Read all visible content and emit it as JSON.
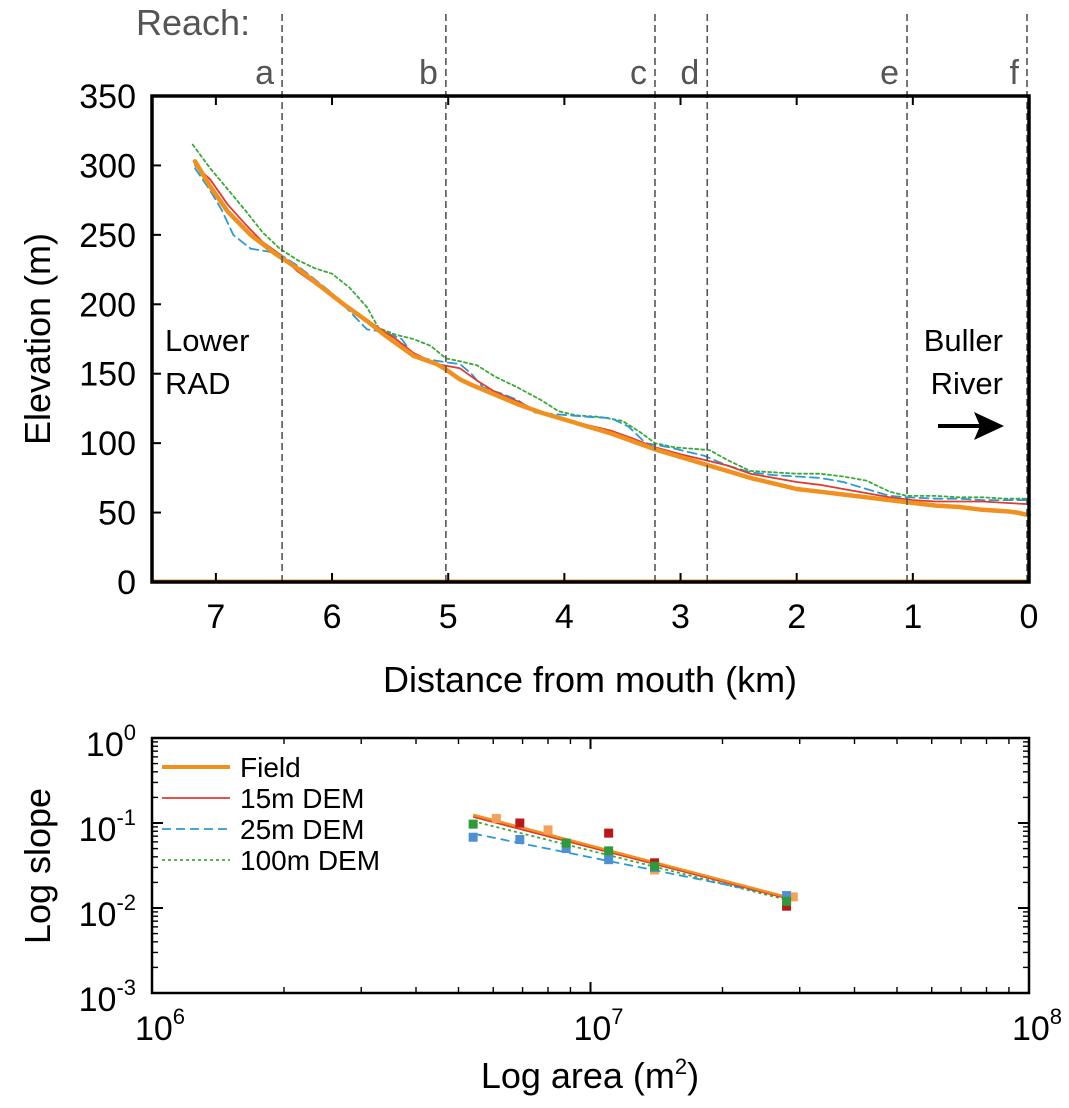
{
  "chart_data": [
    {
      "type": "line",
      "title": "",
      "xlabel": "Distance from mouth (km)",
      "ylabel": "Elevation (m)",
      "xlim": [
        7.55,
        0
      ],
      "ylim": [
        0,
        350
      ],
      "x_reversed": true,
      "xticks": [
        "7",
        "6",
        "5",
        "4",
        "3",
        "2",
        "1",
        "0"
      ],
      "xtick_values": [
        7,
        6,
        5,
        4,
        3,
        2,
        1,
        0
      ],
      "yticks": [
        "0",
        "50",
        "100",
        "150",
        "200",
        "250",
        "300",
        "350"
      ],
      "ytick_values": [
        0,
        50,
        100,
        150,
        200,
        250,
        300,
        350
      ],
      "reach_label": "Reach:",
      "reaches": [
        {
          "label": "a",
          "x": 6.43
        },
        {
          "label": "b",
          "x": 5.02
        },
        {
          "label": "c",
          "x": 3.22
        },
        {
          "label": "d",
          "x": 2.77
        },
        {
          "label": "e",
          "x": 1.05
        },
        {
          "label": "f",
          "x": 0.0
        }
      ],
      "annotations": {
        "left_line1": "Lower",
        "left_line2": "RAD",
        "right_line1": "Buller",
        "right_line2": "River"
      },
      "series": [
        {
          "name": "Field",
          "color": "#f0901e",
          "style": "solid-thick",
          "points": [
            [
              7.18,
              303
            ],
            [
              7.05,
              285
            ],
            [
              6.9,
              267
            ],
            [
              6.7,
              250
            ],
            [
              6.5,
              237
            ],
            [
              6.3,
              226
            ],
            [
              6.1,
              213
            ],
            [
              5.9,
              200
            ],
            [
              5.7,
              188
            ],
            [
              5.55,
              178
            ],
            [
              5.45,
              172
            ],
            [
              5.3,
              163
            ],
            [
              5.1,
              157
            ],
            [
              5.02,
              153
            ],
            [
              4.9,
              146
            ],
            [
              4.8,
              142
            ],
            [
              4.6,
              135
            ],
            [
              4.4,
              128
            ],
            [
              4.2,
              122
            ],
            [
              4.0,
              117
            ],
            [
              3.8,
              112
            ],
            [
              3.6,
              107
            ],
            [
              3.4,
              101
            ],
            [
              3.2,
              95
            ],
            [
              3.0,
              90
            ],
            [
              2.8,
              85
            ],
            [
              2.6,
              80
            ],
            [
              2.4,
              75
            ],
            [
              2.2,
              71
            ],
            [
              2.0,
              67
            ],
            [
              1.8,
              65
            ],
            [
              1.6,
              63
            ],
            [
              1.4,
              61
            ],
            [
              1.2,
              59
            ],
            [
              1.0,
              57
            ],
            [
              0.8,
              55
            ],
            [
              0.6,
              54
            ],
            [
              0.4,
              52
            ],
            [
              0.2,
              51
            ],
            [
              0.1,
              50
            ],
            [
              0.0,
              48
            ]
          ]
        },
        {
          "name": "15m DEM",
          "color": "#e23a2e",
          "style": "solid",
          "points": [
            [
              7.18,
              300
            ],
            [
              7.05,
              290
            ],
            [
              6.9,
              272
            ],
            [
              6.75,
              258
            ],
            [
              6.6,
              245
            ],
            [
              6.45,
              236
            ],
            [
              6.3,
              224
            ],
            [
              6.1,
              212
            ],
            [
              5.9,
              200
            ],
            [
              5.75,
              192
            ],
            [
              5.6,
              183
            ],
            [
              5.45,
              175
            ],
            [
              5.3,
              165
            ],
            [
              5.1,
              157
            ],
            [
              4.9,
              154
            ],
            [
              4.75,
              145
            ],
            [
              4.6,
              137
            ],
            [
              4.4,
              130
            ],
            [
              4.2,
              122
            ],
            [
              4.0,
              117
            ],
            [
              3.8,
              113
            ],
            [
              3.6,
              109
            ],
            [
              3.4,
              103
            ],
            [
              3.22,
              97
            ],
            [
              3.0,
              92
            ],
            [
              2.8,
              88
            ],
            [
              2.6,
              84
            ],
            [
              2.4,
              78
            ],
            [
              2.2,
              75
            ],
            [
              2.0,
              72
            ],
            [
              1.8,
              70
            ],
            [
              1.6,
              67
            ],
            [
              1.4,
              64
            ],
            [
              1.2,
              61
            ],
            [
              1.0,
              59
            ],
            [
              0.8,
              58
            ],
            [
              0.6,
              58
            ],
            [
              0.4,
              58
            ],
            [
              0.2,
              57
            ],
            [
              0.0,
              56
            ]
          ]
        },
        {
          "name": "25m DEM",
          "color": "#2a9ad6",
          "style": "dashed",
          "points": [
            [
              7.18,
              298
            ],
            [
              7.05,
              282
            ],
            [
              6.95,
              268
            ],
            [
              6.85,
              250
            ],
            [
              6.7,
              240
            ],
            [
              6.55,
              238
            ],
            [
              6.45,
              236
            ],
            [
              6.3,
              228
            ],
            [
              6.15,
              218
            ],
            [
              6.0,
              208
            ],
            [
              5.85,
              195
            ],
            [
              5.7,
              182
            ],
            [
              5.55,
              180
            ],
            [
              5.4,
              175
            ],
            [
              5.3,
              163
            ],
            [
              5.15,
              160
            ],
            [
              5.0,
              158
            ],
            [
              4.9,
              157
            ],
            [
              4.8,
              150
            ],
            [
              4.7,
              140
            ],
            [
              4.55,
              136
            ],
            [
              4.4,
              131
            ],
            [
              4.25,
              122
            ],
            [
              4.1,
              121
            ],
            [
              3.95,
              120
            ],
            [
              3.8,
              119
            ],
            [
              3.6,
              118
            ],
            [
              3.45,
              112
            ],
            [
              3.3,
              100
            ],
            [
              3.1,
              97
            ],
            [
              2.95,
              94
            ],
            [
              2.8,
              91
            ],
            [
              2.6,
              84
            ],
            [
              2.4,
              79
            ],
            [
              2.2,
              77
            ],
            [
              2.0,
              76
            ],
            [
              1.8,
              75
            ],
            [
              1.6,
              72
            ],
            [
              1.4,
              67
            ],
            [
              1.2,
              62
            ],
            [
              1.05,
              61
            ],
            [
              0.8,
              60
            ],
            [
              0.6,
              60
            ],
            [
              0.4,
              59
            ],
            [
              0.2,
              59
            ],
            [
              0.0,
              59
            ]
          ]
        },
        {
          "name": "100m DEM",
          "color": "#3aaa35",
          "style": "dotted",
          "points": [
            [
              7.2,
              315
            ],
            [
              7.05,
              298
            ],
            [
              6.9,
              283
            ],
            [
              6.75,
              268
            ],
            [
              6.6,
              252
            ],
            [
              6.45,
              240
            ],
            [
              6.3,
              232
            ],
            [
              6.15,
              226
            ],
            [
              6.0,
              222
            ],
            [
              5.85,
              212
            ],
            [
              5.7,
              198
            ],
            [
              5.6,
              183
            ],
            [
              5.45,
              178
            ],
            [
              5.3,
              175
            ],
            [
              5.15,
              170
            ],
            [
              5.02,
              161
            ],
            [
              4.9,
              159
            ],
            [
              4.75,
              156
            ],
            [
              4.6,
              148
            ],
            [
              4.4,
              140
            ],
            [
              4.2,
              131
            ],
            [
              4.05,
              123
            ],
            [
              3.9,
              120
            ],
            [
              3.7,
              119
            ],
            [
              3.5,
              116
            ],
            [
              3.35,
              108
            ],
            [
              3.22,
              100
            ],
            [
              3.05,
              97
            ],
            [
              2.9,
              96
            ],
            [
              2.75,
              95
            ],
            [
              2.6,
              88
            ],
            [
              2.4,
              80
            ],
            [
              2.2,
              79
            ],
            [
              2.0,
              78
            ],
            [
              1.8,
              78
            ],
            [
              1.6,
              76
            ],
            [
              1.4,
              73
            ],
            [
              1.2,
              65
            ],
            [
              1.05,
              62
            ],
            [
              0.8,
              62
            ],
            [
              0.6,
              61
            ],
            [
              0.4,
              61
            ],
            [
              0.2,
              60
            ],
            [
              0.0,
              60
            ]
          ]
        }
      ],
      "arrow": "right"
    },
    {
      "type": "scatter",
      "title": "",
      "xlabel": "Log area (m²)",
      "xlabel_base": "Log area (m",
      "xlabel_sup": "2",
      "xlabel_end": ")",
      "ylabel": "Log slope",
      "x_scale": "log",
      "y_scale": "log",
      "xlim": [
        1000000,
        100000000
      ],
      "ylim": [
        0.001,
        1
      ],
      "xticks": [
        {
          "value": 1000000,
          "base": "10",
          "exp": "6"
        },
        {
          "value": 10000000,
          "base": "10",
          "exp": "7"
        },
        {
          "value": 100000000,
          "base": "10",
          "exp": "8"
        }
      ],
      "yticks": [
        {
          "value": 1,
          "base": "10",
          "exp": "0"
        },
        {
          "value": 0.1,
          "base": "10",
          "exp": "-1"
        },
        {
          "value": 0.01,
          "base": "10",
          "exp": "-2"
        },
        {
          "value": 0.001,
          "base": "10",
          "exp": "-3"
        }
      ],
      "legend_position": "top-left",
      "series": [
        {
          "name": "Field",
          "color": "#f0901e",
          "point_color": "#f4a15a",
          "style": "solid-thick",
          "points": [
            [
              6100000,
              0.113
            ],
            [
              8000000,
              0.083
            ],
            [
              14000000,
              0.028
            ],
            [
              29000000,
              0.0135
            ]
          ],
          "fit": [
            [
              5400000,
              0.125
            ],
            [
              28000000,
              0.0135
            ]
          ]
        },
        {
          "name": "15m DEM",
          "color": "#e23a2e",
          "point_color": "#b81818",
          "style": "solid",
          "points": [
            [
              6900000,
              0.1
            ],
            [
              11000000,
              0.076
            ],
            [
              14000000,
              0.034
            ],
            [
              28000000,
              0.0105
            ]
          ],
          "fit": [
            [
              5400000,
              0.118
            ],
            [
              28000000,
              0.013
            ]
          ]
        },
        {
          "name": "25m DEM",
          "color": "#2a9ad6",
          "point_color": "#4f8fd4",
          "style": "dashed",
          "points": [
            [
              5400000,
              0.068
            ],
            [
              6900000,
              0.064
            ],
            [
              8800000,
              0.05
            ],
            [
              11000000,
              0.037
            ],
            [
              14000000,
              0.03
            ],
            [
              28000000,
              0.014
            ]
          ],
          "fit": [
            [
              5400000,
              0.075
            ],
            [
              28000000,
              0.0135
            ]
          ]
        },
        {
          "name": "100m DEM",
          "color": "#3aaa35",
          "point_color": "#2e9a3a",
          "style": "dotted",
          "points": [
            [
              5400000,
              0.097
            ],
            [
              8800000,
              0.058
            ],
            [
              11000000,
              0.047
            ],
            [
              14000000,
              0.031
            ],
            [
              28000000,
              0.012
            ]
          ],
          "fit": [
            [
              5400000,
              0.105
            ],
            [
              28000000,
              0.0125
            ]
          ]
        }
      ]
    }
  ]
}
